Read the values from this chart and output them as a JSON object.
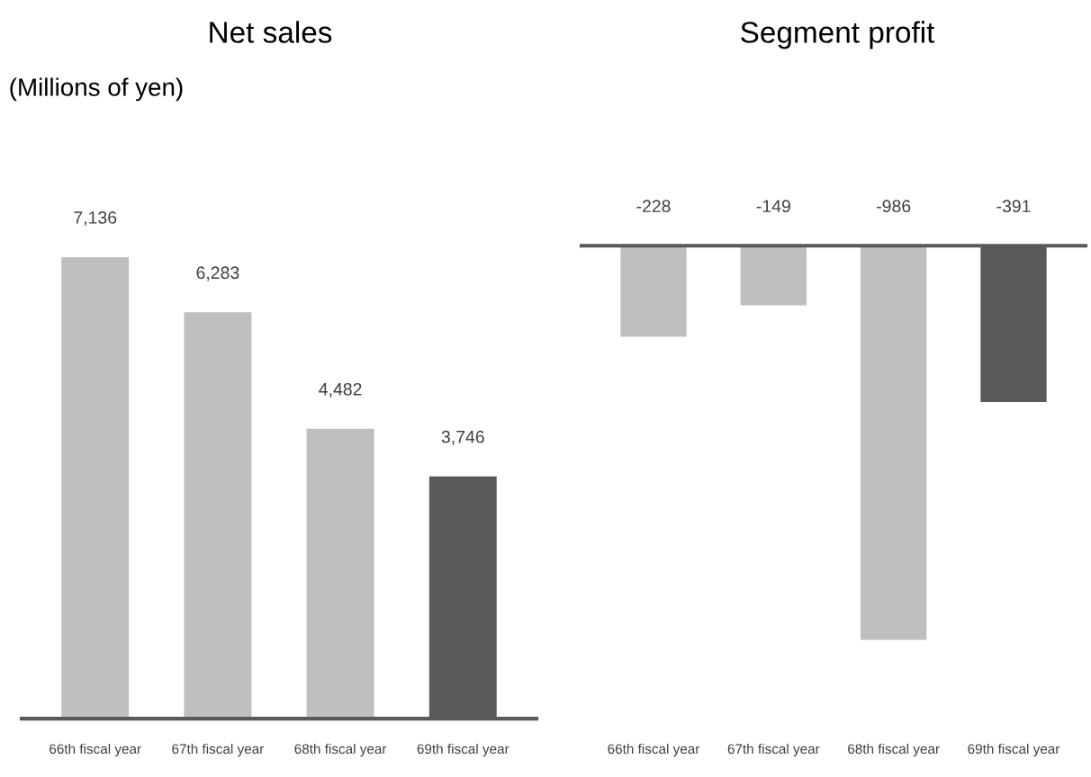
{
  "chart_data": [
    {
      "type": "bar",
      "title": "Net sales",
      "annotations": [
        "(Millions of yen)"
      ],
      "categories": [
        "66th fiscal year",
        "67th fiscal year",
        "68th fiscal year",
        "69th fiscal year"
      ],
      "values": [
        7136,
        6283,
        4482,
        3746
      ],
      "colors": [
        "#bfbfbf",
        "#bfbfbf",
        "#bfbfbf",
        "#595959"
      ],
      "value_labels": [
        "7,136",
        "6,283",
        "4,482",
        "3,746"
      ],
      "tick_labels": "x",
      "grid": false,
      "legend": false
    },
    {
      "type": "bar",
      "title": "Segment profit",
      "categories": [
        "66th fiscal year",
        "67th fiscal year",
        "68th fiscal year",
        "69th fiscal year"
      ],
      "values": [
        -228,
        -149,
        -986,
        -391
      ],
      "colors": [
        "#bfbfbf",
        "#bfbfbf",
        "#bfbfbf",
        "#595959"
      ],
      "value_labels": [
        "-228",
        "-149",
        "-986",
        "-391"
      ],
      "tick_labels": "x",
      "grid": false,
      "legend": false
    }
  ]
}
